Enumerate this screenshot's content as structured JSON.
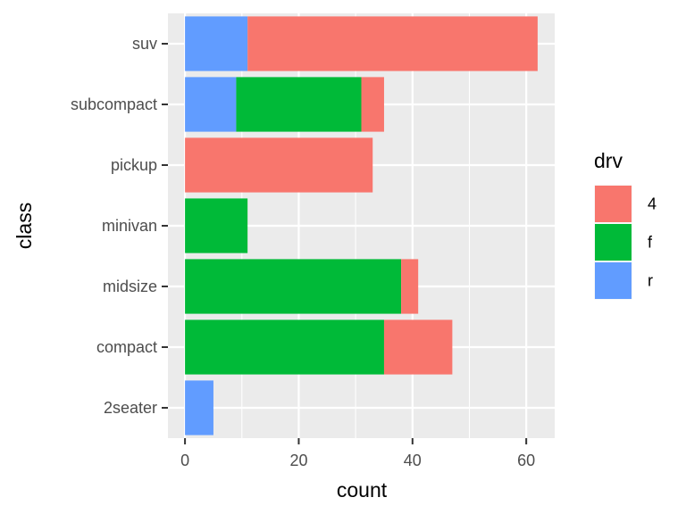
{
  "chart_data": {
    "type": "bar",
    "orientation": "horizontal",
    "stacked": true,
    "categories": [
      "2seater",
      "compact",
      "midsize",
      "minivan",
      "pickup",
      "subcompact",
      "suv"
    ],
    "series": [
      {
        "name": "4",
        "color": "#F8766D",
        "values": [
          0,
          12,
          3,
          0,
          33,
          4,
          51
        ]
      },
      {
        "name": "f",
        "color": "#00BA38",
        "values": [
          0,
          35,
          38,
          11,
          0,
          22,
          0
        ]
      },
      {
        "name": "r",
        "color": "#619CFF",
        "values": [
          5,
          0,
          0,
          0,
          0,
          9,
          11
        ]
      }
    ],
    "stack_order": [
      "r",
      "f",
      "4"
    ],
    "xlabel": "count",
    "ylabel": "class",
    "xlim": [
      -3,
      65
    ],
    "x_ticks": [
      0,
      20,
      40,
      60
    ],
    "x_tick_labels": [
      "0",
      "20",
      "40",
      "60"
    ],
    "grid": true,
    "panel_background": "#EBEBEB",
    "grid_color": "#FFFFFF",
    "legend": {
      "title": "drv",
      "position": "right",
      "entries": [
        "4",
        "f",
        "r"
      ]
    }
  }
}
